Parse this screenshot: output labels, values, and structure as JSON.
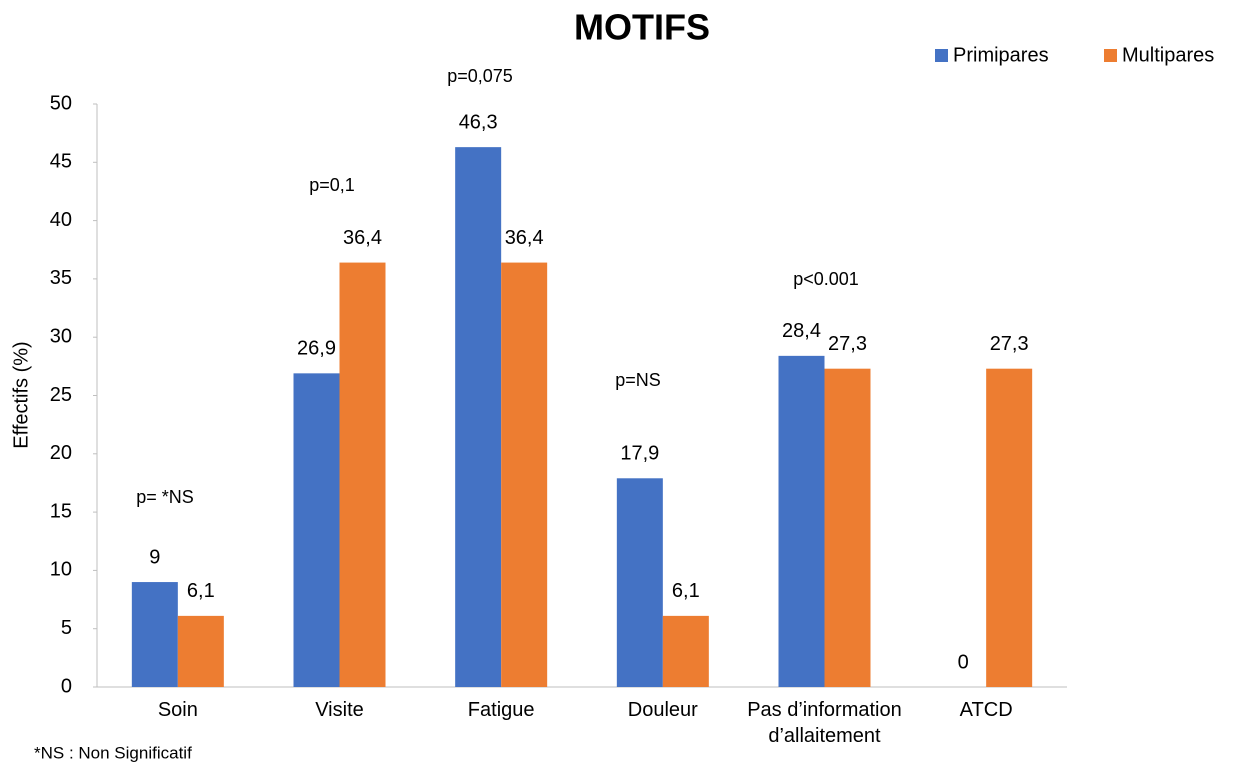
{
  "chart_data": {
    "type": "bar",
    "title": "MOTIFS",
    "y_label": "Effectifs (%)",
    "categories": [
      "Soin",
      "Visite",
      "Fatigue",
      "Douleur",
      "Pas d’information d’allaitement",
      "ATCD"
    ],
    "series": [
      {
        "name": "Primipares",
        "color": "#4472c4",
        "values": [
          9,
          26.9,
          46.3,
          17.9,
          28.4,
          0
        ],
        "value_labels": [
          "9",
          "26,9",
          "46,3",
          "17,9",
          "28,4",
          "0"
        ]
      },
      {
        "name": "Multipares",
        "color": "#ed7d31",
        "values": [
          6.1,
          36.4,
          36.4,
          6.1,
          27.3,
          27.3
        ],
        "value_labels": [
          "6,1",
          "36,4",
          "36,4",
          "6,1",
          "27,3",
          "27,3"
        ]
      }
    ],
    "ylim": [
      0,
      50
    ],
    "yticks": [
      0,
      5,
      10,
      15,
      20,
      25,
      30,
      35,
      40,
      45,
      50
    ],
    "annotations": [
      "p= *NS",
      "p=0,1",
      "p=0,075",
      "p=NS",
      "p<0.001"
    ],
    "footnote": "*NS : Non Significatif",
    "legend": "top-right"
  }
}
